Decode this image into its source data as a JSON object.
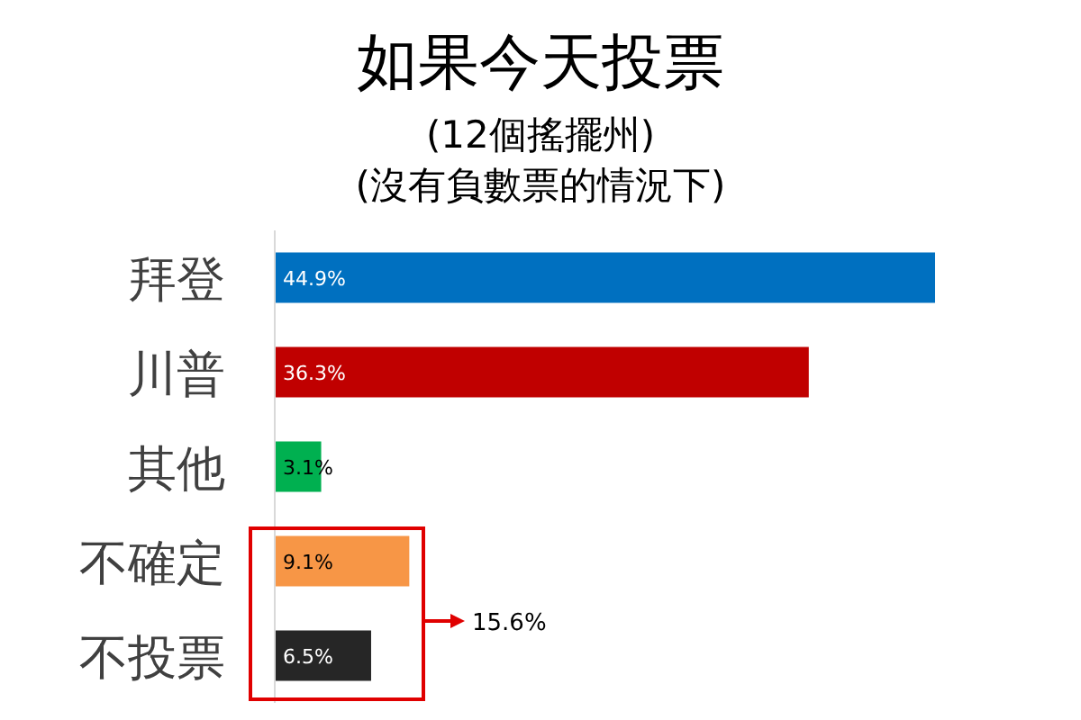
{
  "chart_data": {
    "type": "bar",
    "orientation": "horizontal",
    "title": "如果今天投票",
    "subtitle": "(12個搖擺州)",
    "annotations": [
      "(沒有負數票的情況下)",
      "15.6%"
    ],
    "categories": [
      "拜登",
      "川普",
      "其他",
      "不確定",
      "不投票"
    ],
    "values": [
      44.9,
      36.3,
      3.1,
      9.1,
      6.5
    ],
    "colors": [
      "#0070c0",
      "#c00000",
      "#00b050",
      "#f79646",
      "#262626"
    ],
    "value_labels": [
      "44.9%",
      "36.3%",
      "3.1%",
      "9.1%",
      "6.5%"
    ]
  }
}
